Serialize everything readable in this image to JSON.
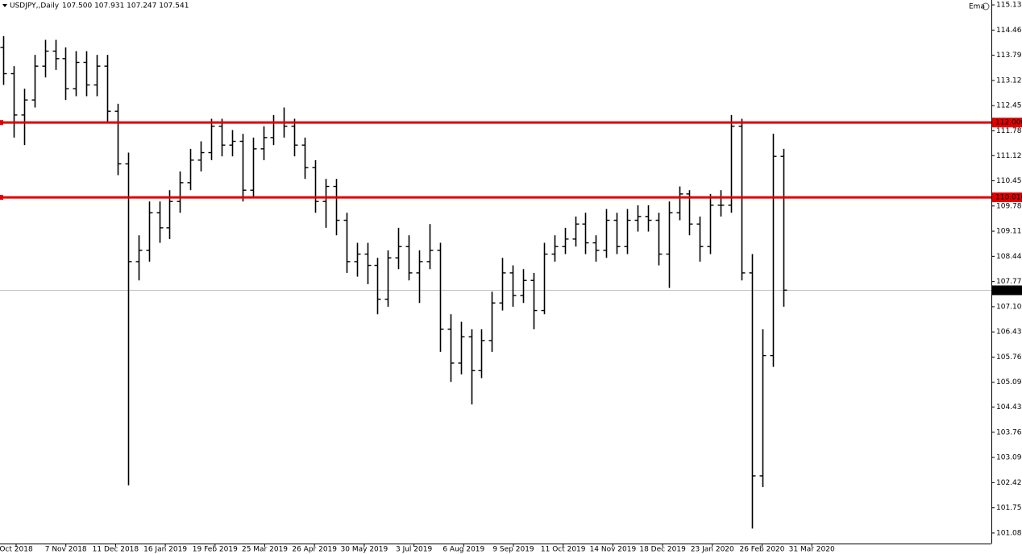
{
  "chart_data": {
    "type": "ohlc",
    "symbol": "USDJPY,,Daily",
    "quote": "107.500 107.931 107.247 107.541",
    "indicator": "Ema",
    "color": "#000000",
    "ylim": [
      100.8,
      115.26
    ],
    "yticks": [
      {
        "value": 115.13,
        "label": "115.130"
      },
      {
        "value": 114.46,
        "label": "114.460"
      },
      {
        "value": 113.79,
        "label": "113.790"
      },
      {
        "value": 113.12,
        "label": "113.120"
      },
      {
        "value": 112.45,
        "label": "112.450"
      },
      {
        "value": 111.78,
        "label": "111.780"
      },
      {
        "value": 111.12,
        "label": "111.120"
      },
      {
        "value": 110.45,
        "label": "110.450"
      },
      {
        "value": 109.78,
        "label": "109.780"
      },
      {
        "value": 109.11,
        "label": "109.110"
      },
      {
        "value": 108.44,
        "label": "108.440"
      },
      {
        "value": 107.77,
        "label": "107.770"
      },
      {
        "value": 107.1,
        "label": "107.100"
      },
      {
        "value": 106.43,
        "label": "106.430"
      },
      {
        "value": 105.76,
        "label": "105.760"
      },
      {
        "value": 105.09,
        "label": "105.090"
      },
      {
        "value": 104.43,
        "label": "104.430"
      },
      {
        "value": 103.76,
        "label": "103.760"
      },
      {
        "value": 103.09,
        "label": "103.090"
      },
      {
        "value": 102.42,
        "label": "102.420"
      },
      {
        "value": 101.75,
        "label": "101.750"
      },
      {
        "value": 101.08,
        "label": "101.080"
      }
    ],
    "x_labels": [
      "Oct 2018",
      "7 Nov 2018",
      "11 Dec 2018",
      "16 Jan 2019",
      "19 Feb 2019",
      "25 Mar 2019",
      "26 Apr 2019",
      "30 May 2019",
      "3 Jul 2019",
      "6 Aug 2019",
      "9 Sep 2019",
      "11 Oct 2019",
      "14 Nov 2019",
      "18 Dec 2019",
      "23 Jan 2020",
      "26 Feb 2020",
      "31 Mar 2020"
    ],
    "levels": [
      {
        "value": 112.0,
        "label": "112.000",
        "color": "#e00000"
      },
      {
        "value": 110.01,
        "label": "110.010",
        "color": "#e00000"
      }
    ],
    "last_price": {
      "value": 107.541,
      "label": "107.541",
      "color": "#c0c0c0"
    },
    "open": [
      114.0,
      113.3,
      112.2,
      112.6,
      113.5,
      113.9,
      113.7,
      112.9,
      113.6,
      113.0,
      113.5,
      112.3,
      110.9,
      108.3,
      108.6,
      109.6,
      109.2,
      109.9,
      110.4,
      111.0,
      111.2,
      111.9,
      111.4,
      111.5,
      110.2,
      111.3,
      111.6,
      112.0,
      111.9,
      111.4,
      110.8,
      109.9,
      110.3,
      109.4,
      108.3,
      108.5,
      108.2,
      107.3,
      108.4,
      108.7,
      108.0,
      108.3,
      108.6,
      106.5,
      105.6,
      106.3,
      105.4,
      106.2,
      107.2,
      108.0,
      107.4,
      107.8,
      107.0,
      108.5,
      108.7,
      108.9,
      109.3,
      108.8,
      108.6,
      109.4,
      108.7,
      109.4,
      109.5,
      109.4,
      108.5,
      109.6,
      110.1,
      109.3,
      108.7,
      109.8,
      109.8,
      111.9,
      108.0,
      102.6,
      105.8,
      111.1
    ],
    "high": [
      114.3,
      113.5,
      112.9,
      113.8,
      114.2,
      114.2,
      114.0,
      113.9,
      113.9,
      113.8,
      113.8,
      112.5,
      111.2,
      109.0,
      109.9,
      109.9,
      110.2,
      110.7,
      111.3,
      111.5,
      112.1,
      112.1,
      111.8,
      111.7,
      111.6,
      111.9,
      112.2,
      112.4,
      112.1,
      111.6,
      111.0,
      110.5,
      110.5,
      109.6,
      108.8,
      108.8,
      108.4,
      108.6,
      109.2,
      109.0,
      108.6,
      109.3,
      108.8,
      106.9,
      106.7,
      106.5,
      106.5,
      107.5,
      108.4,
      108.2,
      108.1,
      108.0,
      108.8,
      109.0,
      109.2,
      109.5,
      109.6,
      109.0,
      109.7,
      109.6,
      109.7,
      109.8,
      109.8,
      109.6,
      109.9,
      110.3,
      110.2,
      109.5,
      110.1,
      110.2,
      112.2,
      112.1,
      108.5,
      106.5,
      111.7,
      111.3
    ],
    "low": [
      113.0,
      111.6,
      111.4,
      112.4,
      113.2,
      113.4,
      112.6,
      112.7,
      112.7,
      112.7,
      112.0,
      110.6,
      102.35,
      107.8,
      108.3,
      108.8,
      108.9,
      109.6,
      110.2,
      110.7,
      111.0,
      111.1,
      111.1,
      109.9,
      110.0,
      111.0,
      111.4,
      111.6,
      111.1,
      110.5,
      109.6,
      109.2,
      109.0,
      108.0,
      107.9,
      107.7,
      106.9,
      107.1,
      108.1,
      107.8,
      107.2,
      108.1,
      105.9,
      105.1,
      105.3,
      104.5,
      105.2,
      105.9,
      107.0,
      107.1,
      107.2,
      106.5,
      106.9,
      108.3,
      108.5,
      108.7,
      108.5,
      108.3,
      108.4,
      108.5,
      108.5,
      109.1,
      109.1,
      108.2,
      107.6,
      109.4,
      109.0,
      108.3,
      108.5,
      109.5,
      109.6,
      107.8,
      101.2,
      102.3,
      105.5,
      107.1
    ],
    "close": [
      113.3,
      112.2,
      112.6,
      113.5,
      113.9,
      113.7,
      112.9,
      113.6,
      113.0,
      113.5,
      112.3,
      110.9,
      108.3,
      108.6,
      109.6,
      109.2,
      109.9,
      110.4,
      111.0,
      111.2,
      111.9,
      111.4,
      111.5,
      110.2,
      111.3,
      111.6,
      112.0,
      111.9,
      111.4,
      110.8,
      109.9,
      110.3,
      109.4,
      108.3,
      108.5,
      108.2,
      107.3,
      108.4,
      108.7,
      108.0,
      108.3,
      108.6,
      106.5,
      105.6,
      106.3,
      105.4,
      106.2,
      107.2,
      108.0,
      107.4,
      107.8,
      107.0,
      108.5,
      108.7,
      108.9,
      109.3,
      108.8,
      108.6,
      109.4,
      108.7,
      109.4,
      109.5,
      109.4,
      108.5,
      109.6,
      110.1,
      109.3,
      108.7,
      109.8,
      109.8,
      111.9,
      108.0,
      102.6,
      105.8,
      111.1,
      107.541
    ]
  }
}
